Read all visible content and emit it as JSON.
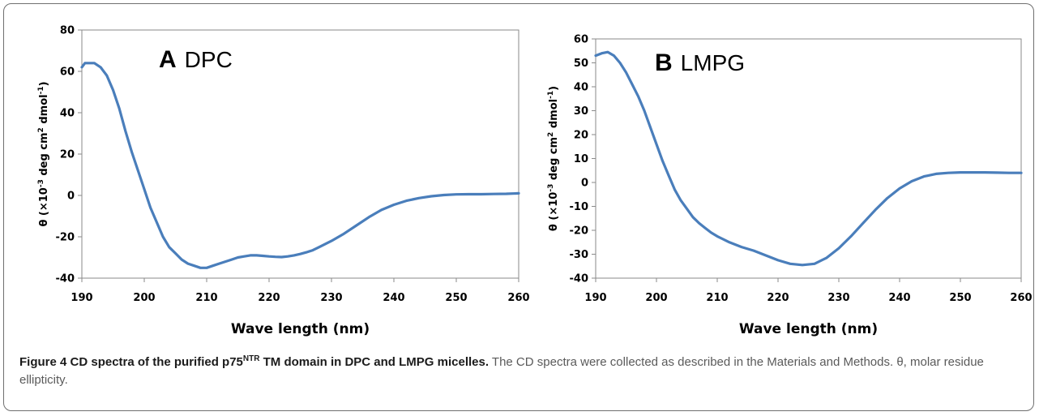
{
  "figure_caption": {
    "label": "Figure 4",
    "title_pre": "CD spectra of the purified p75",
    "title_sup": "NTR",
    "title_post": " TM domain in DPC and LMPG micelles.",
    "body": "The CD spectra were collected as described in the Materials and Methods. θ, molar residue ellipticity."
  },
  "chart_data": [
    {
      "type": "line",
      "panel_letter": "A",
      "panel_name": "DPC",
      "xlabel": "Wave length (nm)",
      "ylabel_main": "θ (×10",
      "ylabel_sup1": "-3",
      "ylabel_mid": " deg cm",
      "ylabel_sup2": "2",
      "ylabel_mid2": " dmol",
      "ylabel_sup3": "-1",
      "ylabel_end": ")",
      "xlim": [
        190,
        260
      ],
      "ylim": [
        -40,
        80
      ],
      "xticks": [
        "190",
        "200",
        "210",
        "220",
        "230",
        "240",
        "250",
        "260"
      ],
      "yticks": [
        "-40",
        "-20",
        "0",
        "20",
        "40",
        "60",
        "80"
      ],
      "color": "#4a7ebb",
      "grid": false,
      "series": [
        {
          "x": [
            190,
            190.5,
            191,
            192,
            193,
            194,
            195,
            196,
            197,
            198,
            199,
            200,
            201,
            202,
            203,
            204,
            205,
            206,
            207,
            208,
            209,
            210,
            211,
            212,
            213,
            214,
            215,
            216,
            217,
            218,
            219,
            220,
            221,
            222,
            223,
            224,
            225,
            226,
            227,
            228,
            229,
            230,
            232,
            234,
            236,
            238,
            240,
            242,
            244,
            246,
            248,
            250,
            252,
            254,
            256,
            258,
            260
          ],
          "y": [
            62,
            64,
            64,
            64,
            62,
            58,
            51,
            42,
            31,
            21,
            12,
            3,
            -6,
            -13,
            -20,
            -25,
            -28,
            -31,
            -33,
            -34,
            -35,
            -35,
            -34,
            -33,
            -32,
            -31,
            -30,
            -29.5,
            -29,
            -29,
            -29.2,
            -29.5,
            -29.7,
            -29.8,
            -29.5,
            -29,
            -28.3,
            -27.5,
            -26.5,
            -25,
            -23.5,
            -22,
            -18.5,
            -14.5,
            -10.5,
            -7,
            -4.5,
            -2.6,
            -1.3,
            -0.4,
            0.2,
            0.5,
            0.6,
            0.6,
            0.7,
            0.8,
            1
          ]
        }
      ]
    },
    {
      "type": "line",
      "panel_letter": "B",
      "panel_name": "LMPG",
      "xlabel": "Wave length (nm)",
      "ylabel_main": "θ (×10",
      "ylabel_sup1": "-3",
      "ylabel_mid": " deg cm",
      "ylabel_sup2": "2",
      "ylabel_mid2": " dmol",
      "ylabel_sup3": "-1",
      "ylabel_end": ")",
      "xlim": [
        190,
        260
      ],
      "ylim": [
        -40,
        60
      ],
      "xticks": [
        "190",
        "200",
        "210",
        "220",
        "230",
        "240",
        "250",
        "260"
      ],
      "yticks": [
        "-40",
        "-30",
        "-20",
        "-10",
        "0",
        "10",
        "20",
        "30",
        "40",
        "50",
        "60"
      ],
      "color": "#4a7ebb",
      "grid": false,
      "series": [
        {
          "x": [
            190,
            191,
            192,
            193,
            194,
            195,
            196,
            197,
            198,
            199,
            200,
            201,
            202,
            203,
            204,
            205,
            206,
            207,
            208,
            209,
            210,
            212,
            214,
            216,
            218,
            220,
            222,
            224,
            226,
            228,
            230,
            232,
            234,
            236,
            238,
            240,
            242,
            244,
            246,
            248,
            250,
            252,
            254,
            256,
            258,
            260
          ],
          "y": [
            53,
            54,
            54.5,
            53,
            50,
            46,
            41,
            36,
            30,
            23,
            16,
            9,
            3,
            -3,
            -7.5,
            -11,
            -14.5,
            -17,
            -19,
            -21,
            -22.5,
            -25,
            -27,
            -28.5,
            -30.5,
            -32.5,
            -34,
            -34.5,
            -34,
            -31.5,
            -27.5,
            -22.5,
            -17,
            -11.5,
            -6.5,
            -2.5,
            0.5,
            2.5,
            3.6,
            4,
            4.2,
            4.2,
            4.2,
            4.1,
            4,
            4
          ]
        }
      ]
    }
  ]
}
